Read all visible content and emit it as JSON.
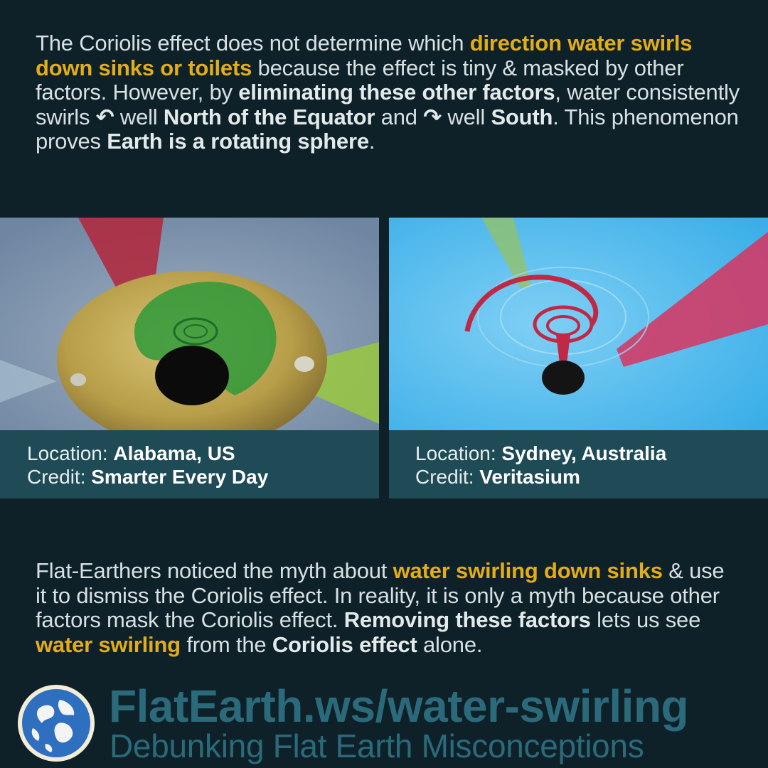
{
  "intro": {
    "t1": "The Coriolis effect does not determine which ",
    "h1": "direction water swirls down sinks or toilets",
    "t2": " because the effect is tiny & masked by other factors. However, by ",
    "h2": "eliminating these other factors",
    "t3": ", water consistently swirls ",
    "icon_ccw": "↶",
    "t4": " well ",
    "h3": "North of the Equator",
    "t5": " and ",
    "icon_cw": "↷",
    "t6": " well ",
    "h4": "South",
    "t7": ". This phenomenon proves ",
    "h5": "Earth is a rotating sphere",
    "t8": "."
  },
  "panels": [
    {
      "location_label": "Location: ",
      "location_value": "Alabama, US",
      "credit_label": "Credit: ",
      "credit_value": "Smarter Every Day"
    },
    {
      "location_label": "Location: ",
      "location_value": "Sydney, Australia",
      "credit_label": "Credit: ",
      "credit_value": "Veritasium"
    }
  ],
  "outro": {
    "t1": "Flat-Earthers noticed the myth about ",
    "h1": "water swirling down sinks",
    "t2": " & use it to dismiss the Coriolis effect. In reality, it is only a myth because other factors mask the Coriolis effect. ",
    "h2": "Removing these factors",
    "t3": " lets us see ",
    "h3": "water swirling",
    "t4": " from the ",
    "h4": "Coriolis effect",
    "t5": " alone."
  },
  "footer": {
    "url": "FlatEarth.ws/water-swirling",
    "tagline": "Debunking Flat Earth Misconceptions",
    "logo_icon": "globe-logo-icon"
  },
  "colors": {
    "background": "#0e2129",
    "highlight": "#e2ad16",
    "caption_bar": "#1f4b56",
    "brand": "#2a6a7a"
  }
}
